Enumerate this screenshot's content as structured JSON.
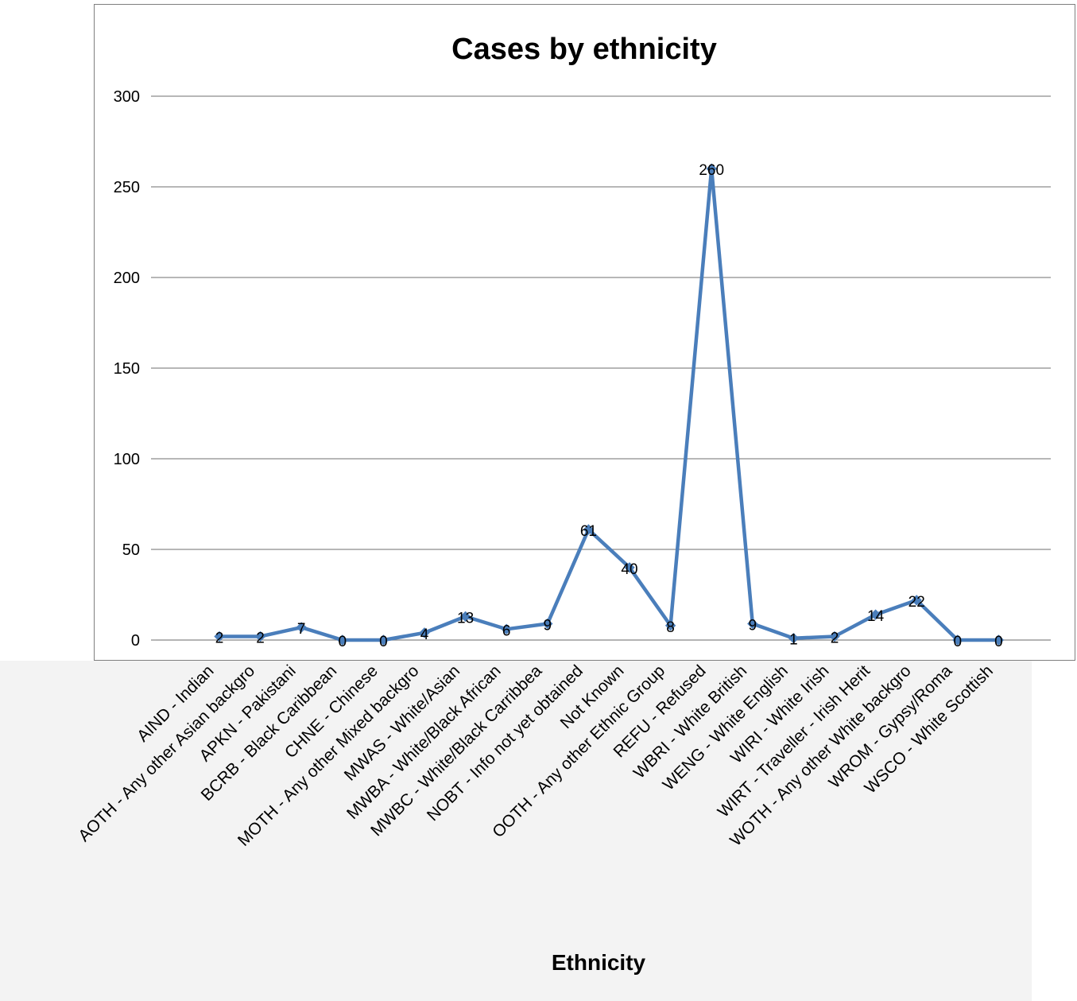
{
  "chart_data": {
    "type": "line",
    "title": "Cases by ethnicity",
    "xlabel": "Ethnicity",
    "ylabel": "",
    "ylim": [
      0,
      300
    ],
    "yticks": [
      0,
      50,
      100,
      150,
      200,
      250,
      300
    ],
    "grid": true,
    "legend": "none",
    "line_color": "#4a7ebb",
    "categories": [
      "AIND - Indian",
      "AOTH - Any other Asian backgro",
      "APKN - Pakistani",
      "BCRB - Black Caribbean",
      "CHNE - Chinese",
      "MOTH - Any other Mixed backgro",
      "MWAS - White/Asian",
      "MWBA - White/Black African",
      "MWBC - White/Black Carribbea",
      "NOBT - Info not yet obtained",
      "Not Known",
      "OOTH - Any other Ethnic Group",
      "REFU - Refused",
      "WBRI - White British",
      "WENG - White English",
      "WIRI - White Irish",
      "WIRT - Traveller - Irish Herit",
      "WOTH - Any other White backgro",
      "WROM - Gypsy/Roma",
      "WSCO - White Scottish"
    ],
    "values": [
      2,
      2,
      7,
      0,
      0,
      4,
      13,
      6,
      9,
      61,
      40,
      8,
      260,
      9,
      1,
      2,
      14,
      22,
      0,
      0
    ]
  }
}
